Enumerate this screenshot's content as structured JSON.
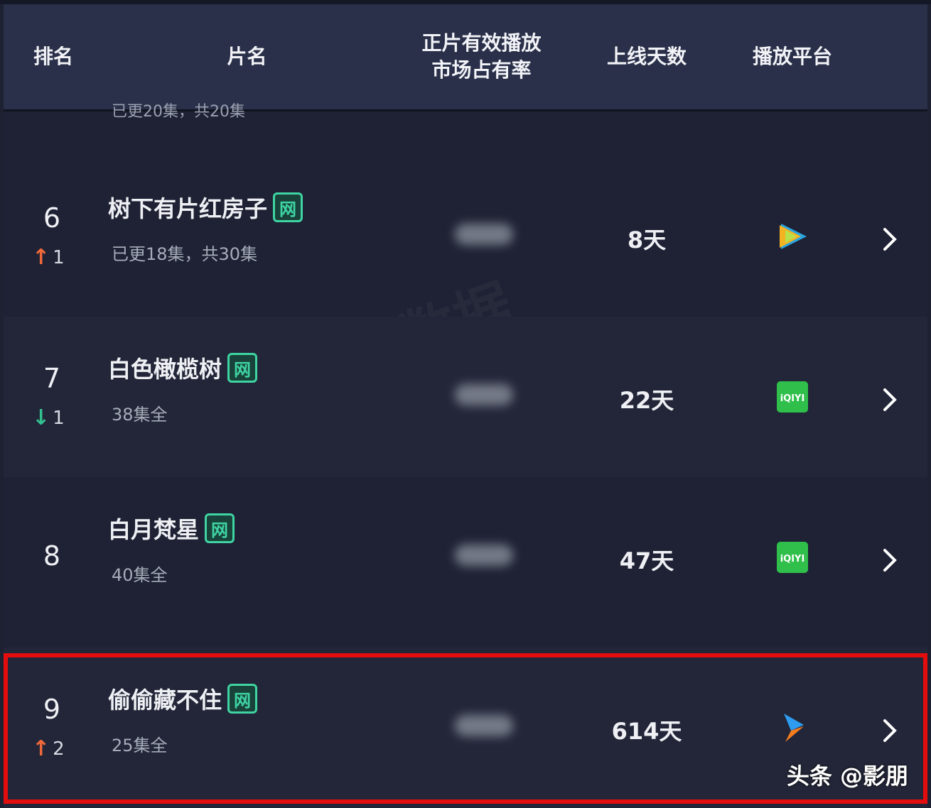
{
  "header": {
    "columns": [
      "排名",
      "片名",
      "正片有效播放\n市场占有率",
      "上线天数",
      "播放平台"
    ]
  },
  "partial_row": {
    "subtitle": "已更20集，共20集"
  },
  "rows": [
    {
      "rank": "6",
      "change_dir": "up",
      "change": "1",
      "title": "树下有片红房子",
      "badge": "网",
      "subtitle": "已更18集，共30集",
      "days": "8天",
      "platform": "tencent-video-icon"
    },
    {
      "rank": "7",
      "change_dir": "down",
      "change": "1",
      "title": "白色橄榄树",
      "badge": "网",
      "subtitle": "38集全",
      "days": "22天",
      "platform": "iqiyi-icon"
    },
    {
      "rank": "8",
      "change_dir": "",
      "change": "",
      "title": "白月梵星",
      "badge": "网",
      "subtitle": "40集全",
      "days": "47天",
      "platform": "iqiyi-icon"
    },
    {
      "rank": "9",
      "change_dir": "up",
      "change": "2",
      "title": "偷偷藏不住",
      "badge": "网",
      "subtitle": "25集全",
      "days": "614天",
      "platform": "youku-icon"
    }
  ],
  "watermark": "云合数据 ENLIGHTENT",
  "footer": "头条 @影朋",
  "colors": {
    "up": "#f0693a",
    "down": "#33c08f",
    "badge": "#3fd4a2",
    "highlight": "#e30d0d",
    "iqiyi": "#2fbf4a"
  }
}
